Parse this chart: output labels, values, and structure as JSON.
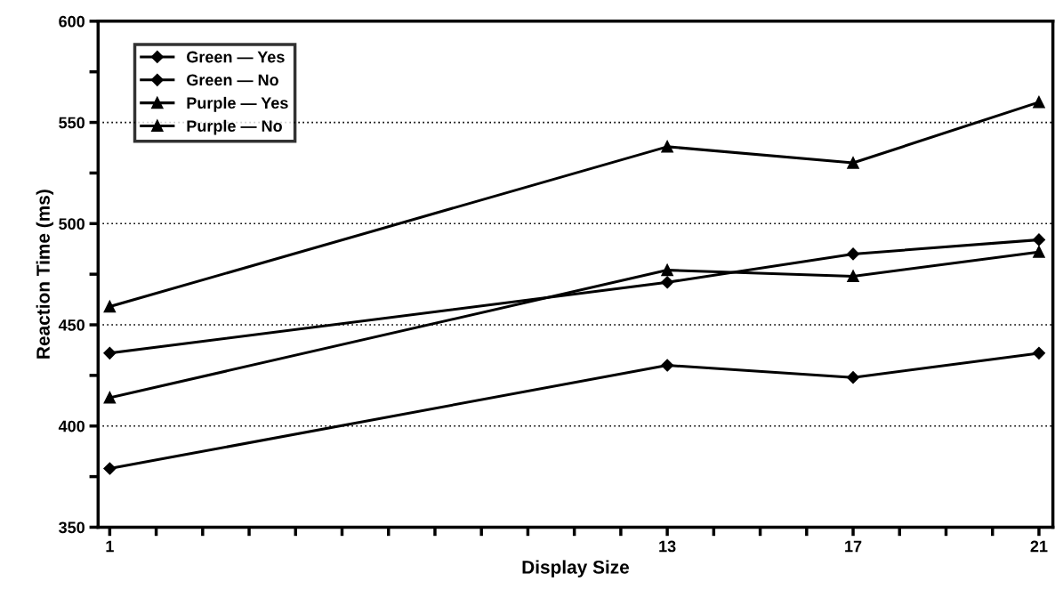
{
  "chart_data": {
    "type": "line",
    "xlabel": "Display Size",
    "ylabel": "Reaction Time (ms)",
    "x": [
      1,
      13,
      17,
      21
    ],
    "series": [
      {
        "name": "Green — Yes",
        "color": "#000000",
        "marker": "diamond",
        "values": [
          379,
          430,
          424,
          436
        ]
      },
      {
        "name": "Green — No",
        "color": "#000000",
        "marker": "diamond",
        "values": [
          436,
          471,
          485,
          492
        ]
      },
      {
        "name": "Purple — Yes",
        "color": "#000000",
        "marker": "triangle",
        "values": [
          414,
          477,
          474,
          486
        ]
      },
      {
        "name": "Purple — No",
        "color": "#000000",
        "marker": "triangle",
        "values": [
          459,
          538,
          530,
          560
        ]
      }
    ],
    "xlim": [
      0.75,
      21.3
    ],
    "xticks": [
      1,
      {
        "value": 2,
        "label": null
      },
      {
        "value": 3,
        "label": null
      },
      {
        "value": 4,
        "label": null
      },
      {
        "value": 5,
        "label": null
      },
      {
        "value": 6,
        "label": null
      },
      {
        "value": 7,
        "label": null
      },
      {
        "value": 8,
        "label": null
      },
      {
        "value": 9,
        "label": null
      },
      {
        "value": 10,
        "label": null
      },
      {
        "value": 11,
        "label": null
      },
      {
        "value": 12,
        "label": null
      },
      13,
      {
        "value": 14,
        "label": null
      },
      {
        "value": 15,
        "label": null
      },
      {
        "value": 16,
        "label": null
      },
      17,
      {
        "value": 18,
        "label": null
      },
      {
        "value": 19,
        "label": null
      },
      {
        "value": 20,
        "label": null
      },
      21
    ],
    "ylim": [
      350,
      600
    ],
    "yticks": [
      350,
      {
        "value": 375,
        "label": null
      },
      400,
      {
        "value": 425,
        "label": null
      },
      450,
      {
        "value": 475,
        "label": null
      },
      500,
      {
        "value": 525,
        "label": null
      },
      550,
      {
        "value": 575,
        "label": null
      },
      600
    ],
    "grid": "y",
    "legend": "top left",
    "line_style": "solid"
  }
}
